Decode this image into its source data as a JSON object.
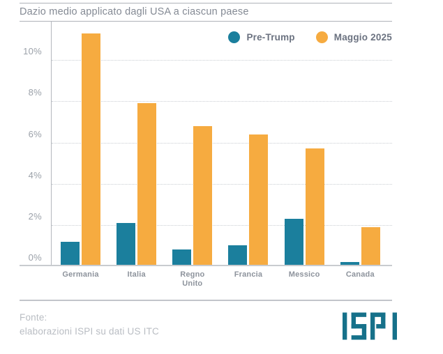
{
  "title": "Dazio medio applicato dagli USA a ciascun paese",
  "chart_data": {
    "type": "bar",
    "title": "Dazio medio applicato dagli USA a ciascun paese",
    "categories": [
      "Germania",
      "Italia",
      "Regno Unito",
      "Francia",
      "Messico",
      "Canada"
    ],
    "x_labels_display": [
      "Germania",
      "Italia",
      "Regno\nUnito",
      "Francia",
      "Messico",
      "Canada"
    ],
    "series": [
      {
        "name": "Pre-Trump",
        "color": "#1b7f9d",
        "values": [
          1.2,
          2.1,
          0.8,
          1.0,
          2.3,
          0.2
        ]
      },
      {
        "name": "Maggio 2025",
        "color": "#f6ab40",
        "values": [
          11.3,
          7.9,
          6.8,
          6.4,
          5.7,
          1.9
        ]
      }
    ],
    "unit": "%",
    "y_ticks": [
      0,
      2,
      4,
      6,
      8,
      10
    ],
    "ylim": [
      0,
      11.9
    ],
    "grid": "dotted-horizontal",
    "legend_position": "top-right"
  },
  "footer": {
    "source_label": "Fonte:",
    "source_text": "elaborazioni ISPI su dati US ITC",
    "logo_text": "ISPI",
    "logo_color": "#16718a"
  },
  "colors": {
    "pre_trump": "#1b7f9d",
    "maggio_2025": "#f6ab40",
    "title_text": "#848a94",
    "tick_label": "#9ba1a9",
    "category_label": "#8d939c",
    "legend_text": "#6b7280",
    "axis_line": "#b3b7bd",
    "gridline": "#c9cdd2",
    "footer_text": "#b9bdc3"
  }
}
